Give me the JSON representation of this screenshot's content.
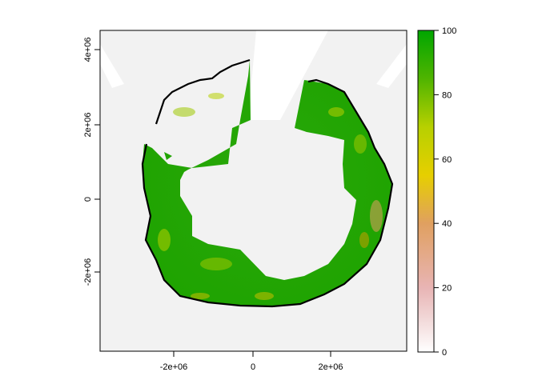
{
  "map": {
    "x_ticks": [
      "-2e+06",
      "0",
      "2e+06"
    ],
    "y_ticks": [
      "-2e+06",
      "0",
      "2e+06",
      "4e+06"
    ],
    "background_color": "#f2f2f2",
    "coastline_color": "#000000"
  },
  "legend": {
    "ticks": [
      "0",
      "20",
      "40",
      "60",
      "80",
      "100"
    ],
    "range": [
      0,
      100
    ],
    "colors": [
      "#ffffff",
      "#e8b4b4",
      "#e0a060",
      "#e6cf00",
      "#9fc800",
      "#00a600"
    ]
  }
}
